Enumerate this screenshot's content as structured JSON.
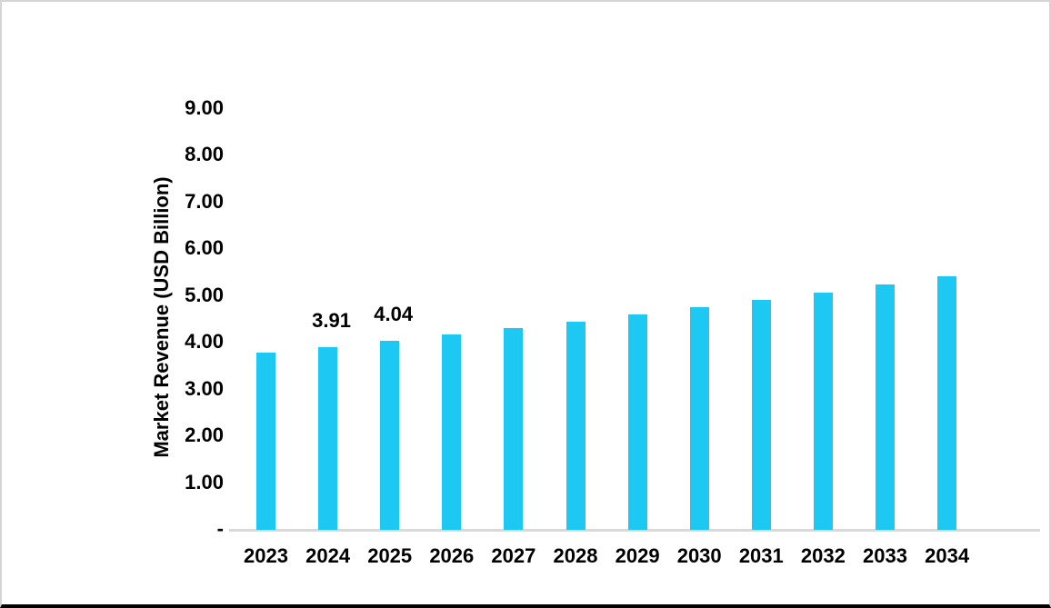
{
  "chart_data": {
    "type": "bar",
    "title": "",
    "xlabel": "",
    "ylabel": "Market Revenue (USD Billion)",
    "categories": [
      "2023",
      "2024",
      "2025",
      "2026",
      "2027",
      "2028",
      "2029",
      "2030",
      "2031",
      "2032",
      "2033",
      "2034"
    ],
    "values": [
      3.79,
      3.91,
      4.04,
      4.17,
      4.31,
      4.45,
      4.6,
      4.75,
      4.91,
      5.07,
      5.24,
      5.41
    ],
    "bar_labels": [
      "",
      "3.91",
      "4.04",
      "",
      "",
      "",
      "",
      "",
      "",
      "",
      "",
      ""
    ],
    "y_ticks": [
      {
        "value": 9,
        "label": "9.00"
      },
      {
        "value": 8,
        "label": "8.00"
      },
      {
        "value": 7,
        "label": "7.00"
      },
      {
        "value": 6,
        "label": "6.00"
      },
      {
        "value": 5,
        "label": "5.00"
      },
      {
        "value": 4,
        "label": "4.00"
      },
      {
        "value": 3,
        "label": "3.00"
      },
      {
        "value": 2,
        "label": "2.00"
      },
      {
        "value": 1,
        "label": "1.00"
      },
      {
        "value": 0,
        "label": "-"
      }
    ],
    "ylim": [
      0,
      9.5
    ],
    "grid": "off",
    "legend": "none",
    "colors": {
      "bar": "#1dc8f2",
      "axis_line": "#d9d9d9",
      "text": "#000000"
    }
  }
}
